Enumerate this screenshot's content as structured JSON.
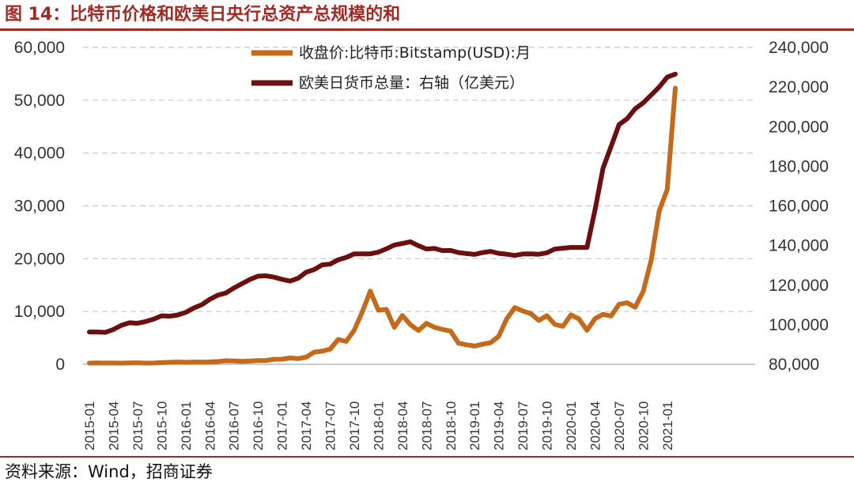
{
  "figure": {
    "title": "图 14：比特币价格和欧美日央行总资产总规模的和",
    "source": "资料来源：Wind，招商证券"
  },
  "colors": {
    "brand": "#a02b25",
    "btc": "#c46a1a",
    "assets": "#6b0f0f",
    "grid": "#c8c8c8"
  },
  "chart_data": {
    "type": "line",
    "x": [
      "2015-01",
      "2015-02",
      "2015-03",
      "2015-04",
      "2015-05",
      "2015-06",
      "2015-07",
      "2015-08",
      "2015-09",
      "2015-10",
      "2015-11",
      "2015-12",
      "2016-01",
      "2016-02",
      "2016-03",
      "2016-04",
      "2016-05",
      "2016-06",
      "2016-07",
      "2016-08",
      "2016-09",
      "2016-10",
      "2016-11",
      "2016-12",
      "2017-01",
      "2017-02",
      "2017-03",
      "2017-04",
      "2017-05",
      "2017-06",
      "2017-07",
      "2017-08",
      "2017-09",
      "2017-10",
      "2017-11",
      "2017-12",
      "2018-01",
      "2018-02",
      "2018-03",
      "2018-04",
      "2018-05",
      "2018-06",
      "2018-07",
      "2018-08",
      "2018-09",
      "2018-10",
      "2018-11",
      "2018-12",
      "2019-01",
      "2019-02",
      "2019-03",
      "2019-04",
      "2019-05",
      "2019-06",
      "2019-07",
      "2019-08",
      "2019-09",
      "2019-10",
      "2019-11",
      "2019-12",
      "2020-01",
      "2020-02",
      "2020-03",
      "2020-04",
      "2020-05",
      "2020-06",
      "2020-07",
      "2020-08",
      "2020-09",
      "2020-10",
      "2020-11",
      "2020-12",
      "2021-01",
      "2021-02"
    ],
    "x_tick_labels": [
      "2015-01",
      "2015-04",
      "2015-07",
      "2015-10",
      "2016-01",
      "2016-04",
      "2016-07",
      "2016-10",
      "2017-01",
      "2017-04",
      "2017-07",
      "2017-10",
      "2018-01",
      "2018-04",
      "2018-07",
      "2018-10",
      "2019-01",
      "2019-04",
      "2019-07",
      "2019-10",
      "2020-01",
      "2020-04",
      "2020-07",
      "2020-10",
      "2021-01"
    ],
    "left_axis": {
      "ylim": [
        0,
        60000
      ],
      "tick_labels": [
        "0",
        "10,000",
        "20,000",
        "30,000",
        "40,000",
        "50,000",
        "60,000"
      ]
    },
    "right_axis": {
      "ylim": [
        80000,
        240000
      ],
      "tick_labels": [
        "80,000",
        "100,000",
        "120,000",
        "140,000",
        "160,000",
        "180,000",
        "200,000",
        "220,000",
        "240,000"
      ]
    },
    "grid": true,
    "legend_position": "top-center",
    "series": [
      {
        "name": "收盘价:比特币:Bitstamp(USD):月",
        "axis": "left",
        "values": [
          220,
          250,
          245,
          235,
          230,
          260,
          285,
          230,
          240,
          315,
          375,
          430,
          370,
          435,
          415,
          450,
          530,
          670,
          625,
          575,
          610,
          700,
          740,
          960,
          970,
          1190,
          1080,
          1350,
          2300,
          2480,
          2875,
          4700,
          4340,
          6450,
          9900,
          13850,
          10250,
          10400,
          7000,
          9250,
          7500,
          6400,
          7750,
          7000,
          6600,
          6300,
          4000,
          3700,
          3450,
          3800,
          4100,
          5300,
          8600,
          10750,
          10100,
          9600,
          8300,
          9200,
          7550,
          7200,
          9350,
          8600,
          6450,
          8650,
          9450,
          9150,
          11350,
          11650,
          10800,
          13800,
          19700,
          29000,
          33100,
          52300
        ]
      },
      {
        "name": "欧美日货币总量：右轴（亿美元）",
        "axis": "right",
        "values": [
          96300,
          96300,
          96100,
          97600,
          99700,
          101000,
          100700,
          101600,
          102800,
          104500,
          104300,
          104900,
          106200,
          108400,
          110100,
          112800,
          114900,
          116000,
          118500,
          120700,
          122800,
          124500,
          124700,
          124000,
          122900,
          122000,
          123400,
          126500,
          127800,
          130200,
          130600,
          132800,
          134000,
          135800,
          135800,
          135800,
          136600,
          138300,
          140200,
          141000,
          141900,
          139900,
          138200,
          138500,
          137400,
          137500,
          136400,
          135900,
          135500,
          136400,
          137000,
          136000,
          135600,
          135000,
          135700,
          135800,
          135600,
          136300,
          138200,
          138600,
          139000,
          139000,
          139000,
          158000,
          179000,
          190000,
          201000,
          204000,
          209000,
          212000,
          216000,
          220000,
          225000,
          226500
        ]
      }
    ]
  }
}
